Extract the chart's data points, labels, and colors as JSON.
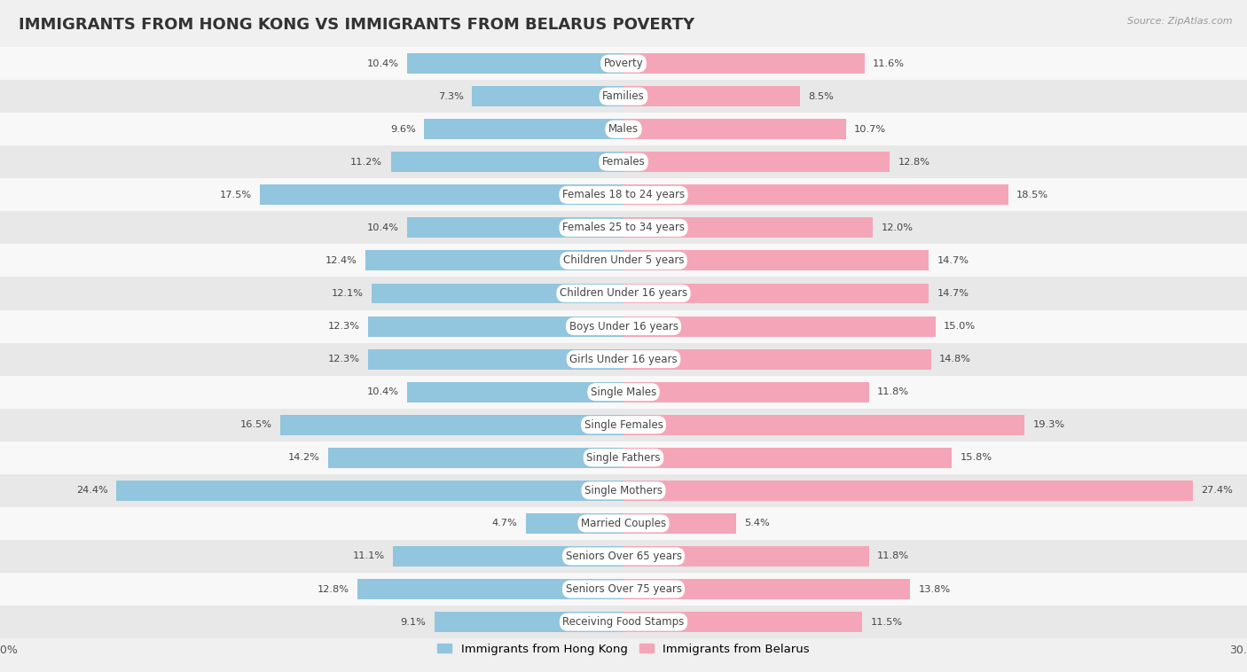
{
  "title": "IMMIGRANTS FROM HONG KONG VS IMMIGRANTS FROM BELARUS POVERTY",
  "source": "Source: ZipAtlas.com",
  "categories": [
    "Poverty",
    "Families",
    "Males",
    "Females",
    "Females 18 to 24 years",
    "Females 25 to 34 years",
    "Children Under 5 years",
    "Children Under 16 years",
    "Boys Under 16 years",
    "Girls Under 16 years",
    "Single Males",
    "Single Females",
    "Single Fathers",
    "Single Mothers",
    "Married Couples",
    "Seniors Over 65 years",
    "Seniors Over 75 years",
    "Receiving Food Stamps"
  ],
  "hong_kong": [
    10.4,
    7.3,
    9.6,
    11.2,
    17.5,
    10.4,
    12.4,
    12.1,
    12.3,
    12.3,
    10.4,
    16.5,
    14.2,
    24.4,
    4.7,
    11.1,
    12.8,
    9.1
  ],
  "belarus": [
    11.6,
    8.5,
    10.7,
    12.8,
    18.5,
    12.0,
    14.7,
    14.7,
    15.0,
    14.8,
    11.8,
    19.3,
    15.8,
    27.4,
    5.4,
    11.8,
    13.8,
    11.5
  ],
  "hk_color": "#92C5DE",
  "belarus_color": "#F4A6B8",
  "hk_label": "Immigrants from Hong Kong",
  "belarus_label": "Immigrants from Belarus",
  "xlim": 30.0,
  "bg_color": "#f0f0f0",
  "row_color_even": "#f8f8f8",
  "row_color_odd": "#e8e8e8",
  "bar_height": 0.62,
  "title_fontsize": 13,
  "label_fontsize": 8.5,
  "value_fontsize": 8.2,
  "label_bg_color": "#ffffff",
  "label_text_color": "#444444"
}
